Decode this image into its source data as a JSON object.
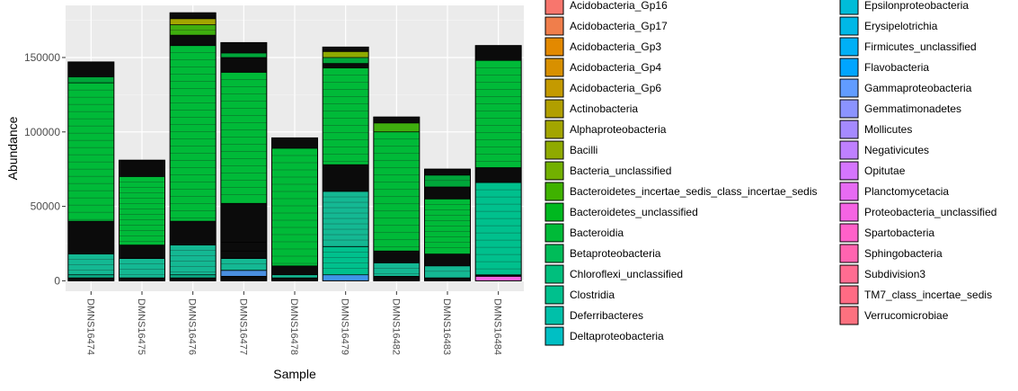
{
  "chart_data": {
    "type": "bar",
    "stacked": true,
    "xlabel": "Sample",
    "ylabel": "Abundance",
    "ylim": [
      -7000,
      185000
    ],
    "yticks": [
      0,
      50000,
      100000,
      150000
    ],
    "ytick_labels": [
      "0",
      "50000",
      "100000",
      "150000"
    ],
    "grid": true,
    "legend_position": "right",
    "categories": [
      "DMNS16474",
      "DMNS16475",
      "DMNS16476",
      "DMNS16477",
      "DMNS16478",
      "DMNS16479",
      "DMNS16482",
      "DMNS16483",
      "DMNS16484"
    ],
    "totals": [
      147000,
      81000,
      180000,
      160000,
      96000,
      157000,
      110000,
      75000,
      158000
    ],
    "segments": [
      [
        [
          0,
          2000,
          "#0B0B0B"
        ],
        [
          2000,
          4000,
          "#0AAE86"
        ],
        [
          4000,
          18000,
          "#14B893"
        ],
        [
          18000,
          40000,
          "#0B0B0B"
        ],
        [
          40000,
          133000,
          "#00BA38"
        ],
        [
          133000,
          137000,
          "#00A63A"
        ],
        [
          137000,
          147000,
          "#0B0B0B"
        ]
      ],
      [
        [
          0,
          2000,
          "#0B0B0B"
        ],
        [
          2000,
          15000,
          "#14B893"
        ],
        [
          15000,
          24000,
          "#0B0B0B"
        ],
        [
          24000,
          70000,
          "#00BA38"
        ],
        [
          70000,
          81000,
          "#0B0B0B"
        ]
      ],
      [
        [
          0,
          2000,
          "#0B0B0B"
        ],
        [
          2000,
          4000,
          "#0AAE86"
        ],
        [
          4000,
          24000,
          "#14B893"
        ],
        [
          24000,
          40000,
          "#0B0B0B"
        ],
        [
          40000,
          158000,
          "#00BA38"
        ],
        [
          158000,
          165000,
          "#0B0B0B"
        ],
        [
          165000,
          172000,
          "#3FAE0E"
        ],
        [
          172000,
          176000,
          "#A3A500"
        ],
        [
          176000,
          180000,
          "#0B0B0B"
        ]
      ],
      [
        [
          0,
          3000,
          "#0B0B0B"
        ],
        [
          3000,
          7000,
          "#4A8FE0"
        ],
        [
          7000,
          15000,
          "#14B893"
        ],
        [
          15000,
          20000,
          "#0B0B0B"
        ],
        [
          20000,
          26000,
          "#0B0B0B"
        ],
        [
          26000,
          52000,
          "#0B0B0B"
        ],
        [
          52000,
          140000,
          "#00BA38"
        ],
        [
          140000,
          150000,
          "#0B0B0B"
        ],
        [
          150000,
          153000,
          "#00A63A"
        ],
        [
          153000,
          160000,
          "#0B0B0B"
        ]
      ],
      [
        [
          0,
          2000,
          "#0B0B0B"
        ],
        [
          2000,
          4000,
          "#14B893"
        ],
        [
          4000,
          10000,
          "#0B0B0B"
        ],
        [
          10000,
          89000,
          "#00BA38"
        ],
        [
          89000,
          96000,
          "#0B0B0B"
        ]
      ],
      [
        [
          0,
          4000,
          "#3E95E8"
        ],
        [
          4000,
          23000,
          "#00C08D"
        ],
        [
          23000,
          60000,
          "#14B893"
        ],
        [
          60000,
          78000,
          "#0B0B0B"
        ],
        [
          78000,
          143000,
          "#00BA38"
        ],
        [
          143000,
          146000,
          "#0B0B0B"
        ],
        [
          146000,
          150000,
          "#00A63A"
        ],
        [
          150000,
          154000,
          "#8FAA00"
        ],
        [
          154000,
          157000,
          "#0B0B0B"
        ]
      ],
      [
        [
          0,
          3000,
          "#0B0B0B"
        ],
        [
          3000,
          12000,
          "#14B893"
        ],
        [
          12000,
          20000,
          "#0B0B0B"
        ],
        [
          20000,
          100000,
          "#00BA38"
        ],
        [
          100000,
          106000,
          "#3FAE0E"
        ],
        [
          106000,
          110000,
          "#0B0B0B"
        ]
      ],
      [
        [
          0,
          2000,
          "#0B0B0B"
        ],
        [
          2000,
          10000,
          "#14B893"
        ],
        [
          10000,
          18000,
          "#0B0B0B"
        ],
        [
          18000,
          55000,
          "#00BA38"
        ],
        [
          55000,
          63000,
          "#0B0B0B"
        ],
        [
          63000,
          71000,
          "#00A63A"
        ],
        [
          71000,
          75000,
          "#0B0B0B"
        ]
      ],
      [
        [
          0,
          3000,
          "#F564E3"
        ],
        [
          3000,
          4000,
          "#0B0B0B"
        ],
        [
          4000,
          66000,
          "#00C08D"
        ],
        [
          66000,
          76000,
          "#0B0B0B"
        ],
        [
          76000,
          148000,
          "#00BA38"
        ],
        [
          148000,
          158000,
          "#0B0B0B"
        ]
      ]
    ],
    "legend_title": "",
    "legend": [
      {
        "label": "Acidobacteria_Gp16",
        "color": "#F8766D"
      },
      {
        "label": "Acidobacteria_Gp17",
        "color": "#F07E4B"
      },
      {
        "label": "Acidobacteria_Gp3",
        "color": "#E38900"
      },
      {
        "label": "Acidobacteria_Gp4",
        "color": "#D89000"
      },
      {
        "label": "Acidobacteria_Gp6",
        "color": "#C49A00"
      },
      {
        "label": "Actinobacteria",
        "color": "#B19F00"
      },
      {
        "label": "Alphaproteobacteria",
        "color": "#A3A500"
      },
      {
        "label": "Bacilli",
        "color": "#8FAA00"
      },
      {
        "label": "Bacteria_unclassified",
        "color": "#72B000"
      },
      {
        "label": "Bacteroidetes_incertae_sedis_class_incertae_sedis",
        "color": "#3FB200"
      },
      {
        "label": "Bacteroidetes_unclassified",
        "color": "#00B81F"
      },
      {
        "label": "Bacteroidia",
        "color": "#00BA38"
      },
      {
        "label": "Betaproteobacteria",
        "color": "#00BC59"
      },
      {
        "label": "Chloroflexi_unclassified",
        "color": "#00BF7D"
      },
      {
        "label": "Clostridia",
        "color": "#00C08D"
      },
      {
        "label": "Deferribacteres",
        "color": "#00C0A9"
      },
      {
        "label": "Deltaproteobacteria",
        "color": "#00BFC4"
      },
      {
        "label": "Epsilonproteobacteria",
        "color": "#00BCD8"
      },
      {
        "label": "Erysipelotrichia",
        "color": "#00B8E7"
      },
      {
        "label": "Firmicutes_unclassified",
        "color": "#00B0F6"
      },
      {
        "label": "Flavobacteria",
        "color": "#00A5FF"
      },
      {
        "label": "Gammaproteobacteria",
        "color": "#619CFF"
      },
      {
        "label": "Gemmatimonadetes",
        "color": "#8B93FF"
      },
      {
        "label": "Mollicutes",
        "color": "#A58AFF"
      },
      {
        "label": "Negativicutes",
        "color": "#BF80FF"
      },
      {
        "label": "Opitutae",
        "color": "#D575FE"
      },
      {
        "label": "Planctomycetacia",
        "color": "#E76BF3"
      },
      {
        "label": "Proteobacteria_unclassified",
        "color": "#F564E3"
      },
      {
        "label": "Spartobacteria",
        "color": "#FF61C9"
      },
      {
        "label": "Sphingobacteria",
        "color": "#FF64B0"
      },
      {
        "label": "Subdivision3",
        "color": "#FF6C91"
      },
      {
        "label": "TM7_class_incertae_sedis",
        "color": "#FF6B84"
      },
      {
        "label": "Verrucomicrobiae",
        "color": "#FC717F"
      }
    ]
  }
}
